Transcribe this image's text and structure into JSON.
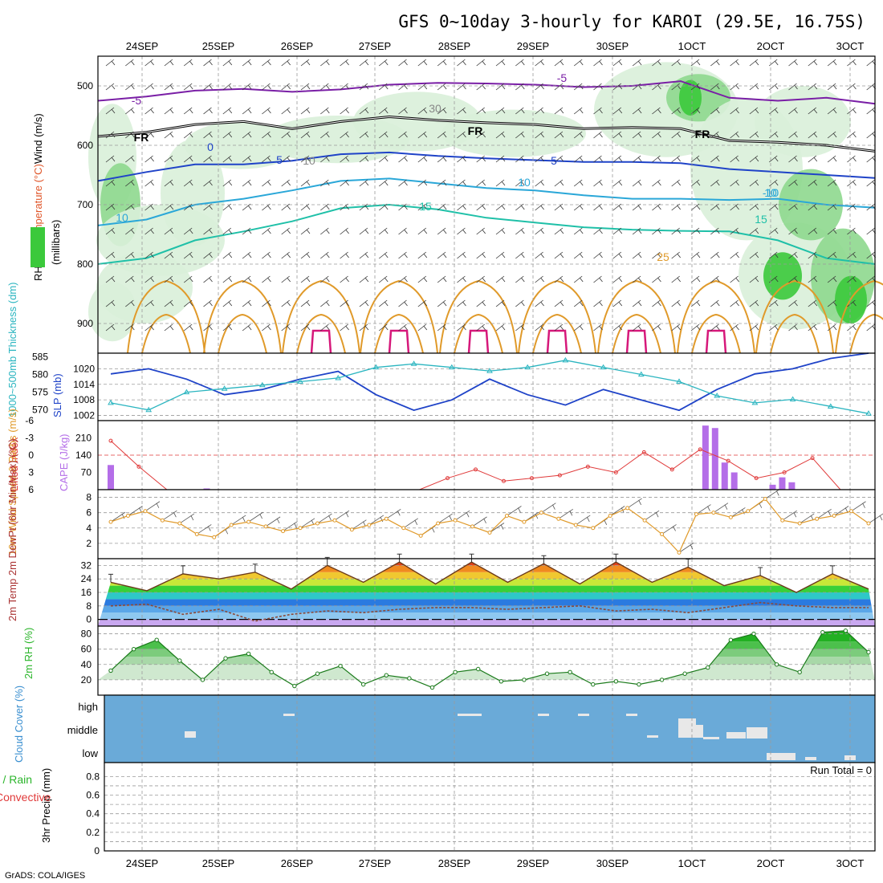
{
  "title": "GFS 0~10day 3-hourly for KAROI (29.5E, 16.75S)",
  "credit": "GrADS: COLA/IGES",
  "colors": {
    "temperature_cold": "#7a1fa6",
    "temperature_fr": "#000000",
    "temperature_mid": "#1f43c8",
    "temperature_cool": "#2aa7d8",
    "temperature_warm": "#1fc0a8",
    "temperature_hot": "#e09a2a",
    "temperature_hottest": "#d6187a",
    "rh_light": "#d9efd9",
    "rh_mid": "#8ed88e",
    "rh_high": "#3bc93b",
    "thickness": "#2bb5c0",
    "slp": "#1f43c8",
    "lifted_index": "#e03a3a",
    "cape": "#b46ee8",
    "wind": "#e09a2a",
    "rh2m": "#2bb52b",
    "cloud_bg": "#6aaad8",
    "cloud_block": "#e8e8e8"
  },
  "chart_data": [
    {
      "id": "upper_air",
      "type": "contour",
      "ylabel_parts": [
        "RH (%)",
        "Temperature (°C)",
        "Wind (m/s)"
      ],
      "ylabel_axis": "(millibars)",
      "yticks": [
        "500",
        "600",
        "700",
        "800",
        "900"
      ],
      "ylim": [
        450,
        950
      ],
      "x_labels_top": [
        "24SEP",
        "25SEP",
        "26SEP",
        "27SEP",
        "28SEP",
        "29SEP",
        "30SEP",
        "1OCT",
        "2OCT",
        "3OCT"
      ],
      "contour_labels": [
        "-5",
        "-5",
        "FR",
        "FR",
        "FR",
        "0",
        "5",
        "5",
        "10",
        "10",
        "-10",
        "15",
        "15",
        "25",
        "30",
        "10",
        "10"
      ],
      "series": [
        {
          "label": "-5",
          "x": [
            0,
            5,
            10,
            15,
            20,
            25,
            30,
            35,
            40,
            45,
            50,
            55,
            60,
            65,
            70,
            75,
            80
          ],
          "y": [
            525,
            518,
            508,
            505,
            510,
            506,
            498,
            495,
            496,
            498,
            502,
            500,
            492,
            520,
            525,
            520,
            530
          ]
        },
        {
          "label": "FR",
          "x": [
            0,
            5,
            10,
            15,
            20,
            25,
            30,
            35,
            40,
            45,
            50,
            55,
            60,
            65,
            70,
            75,
            80
          ],
          "y": [
            585,
            578,
            565,
            560,
            572,
            560,
            552,
            558,
            562,
            565,
            572,
            570,
            572,
            592,
            595,
            600,
            610
          ]
        },
        {
          "label": "5",
          "x": [
            0,
            5,
            10,
            15,
            20,
            25,
            30,
            35,
            40,
            45,
            50,
            55,
            60,
            65,
            70,
            75,
            80
          ],
          "y": [
            660,
            645,
            632,
            632,
            626,
            615,
            612,
            618,
            622,
            625,
            628,
            628,
            630,
            640,
            645,
            650,
            655
          ]
        },
        {
          "label": "10",
          "x": [
            0,
            5,
            10,
            15,
            20,
            25,
            30,
            35,
            40,
            45,
            50,
            55,
            60,
            65,
            70,
            75,
            80
          ],
          "y": [
            735,
            725,
            700,
            690,
            676,
            660,
            656,
            664,
            672,
            676,
            684,
            690,
            690,
            692,
            690,
            700,
            705
          ]
        },
        {
          "label": "15",
          "x": [
            0,
            5,
            10,
            15,
            20,
            25,
            30,
            35,
            40,
            45,
            50,
            55,
            60,
            65,
            70,
            75,
            80
          ],
          "y": [
            800,
            790,
            760,
            745,
            728,
            706,
            700,
            708,
            722,
            730,
            738,
            742,
            744,
            745,
            760,
            790,
            800
          ]
        }
      ]
    },
    {
      "id": "slp_thickness",
      "type": "line",
      "ylabel_left": "1000~500mb Thickness (dm)",
      "ylabel_right": "SLP (mb)",
      "yticks_left": [
        "570",
        "575",
        "580",
        "585"
      ],
      "yticks_right": [
        "1002",
        "1008",
        "1014",
        "1020"
      ],
      "series": [
        {
          "name": "SLP",
          "values": [
            1018,
            1020,
            1016,
            1010,
            1012,
            1016,
            1019,
            1010,
            1004,
            1008,
            1016,
            1010,
            1006,
            1012,
            1008,
            1004,
            1012,
            1018,
            1020,
            1024,
            1026
          ]
        },
        {
          "name": "Thickness",
          "values": [
            572,
            570,
            575,
            576,
            577,
            578,
            579,
            582,
            583,
            582,
            581,
            582,
            584,
            582,
            580,
            578,
            574,
            572,
            573,
            571,
            569
          ]
        }
      ]
    },
    {
      "id": "cape_li",
      "type": "bar",
      "ylabel_left": "CAPE (J/kg)",
      "ylabel_right": "Lifted Index",
      "yticks_left": [
        "70",
        "140",
        "210"
      ],
      "yticks_right": [
        "-6",
        "-3",
        "0",
        "3",
        "6"
      ],
      "cape": [
        {
          "t": 0,
          "v": 100
        },
        {
          "t": 10,
          "v": 5
        },
        {
          "t": 62,
          "v": 260
        },
        {
          "t": 63,
          "v": 250
        },
        {
          "t": 64,
          "v": 110
        },
        {
          "t": 65,
          "v": 70
        },
        {
          "t": 69,
          "v": 20
        },
        {
          "t": 70,
          "v": 50
        },
        {
          "t": 71,
          "v": 30
        }
      ],
      "lifted_index": [
        -2.5,
        2.0,
        6.5,
        6.5,
        6.5,
        6.5,
        6.5,
        6.5,
        6.5,
        6.5,
        6.5,
        6.5,
        4.0,
        2.5,
        4.5,
        4.0,
        3.5,
        2.0,
        3.0,
        -0.5,
        2.5,
        -1.0,
        1.0,
        4.0,
        3.0,
        0.5,
        6.0,
        6.0
      ]
    },
    {
      "id": "wind10m",
      "type": "line",
      "ylabel": "10m Wind Speed & Barbs (m/s)",
      "yticks": [
        "2",
        "4",
        "6",
        "8"
      ],
      "values": [
        4.8,
        5.6,
        6.2,
        5.0,
        4.6,
        3.2,
        2.8,
        4.4,
        4.8,
        4.2,
        3.6,
        4.0,
        4.6,
        5.0,
        3.8,
        4.4,
        5.2,
        4.0,
        3.0,
        4.6,
        5.0,
        4.2,
        3.4,
        5.6,
        4.8,
        6.0,
        5.2,
        4.4,
        4.0,
        5.6,
        6.6,
        5.0,
        3.2,
        0.8,
        5.8,
        6.0,
        5.4,
        6.2,
        7.8,
        5.0,
        4.6,
        5.2,
        5.6,
        6.2,
        4.6
      ]
    },
    {
      "id": "temp2m",
      "type": "area",
      "ylabel": "2m Temp 2m DewPt (6hr Min/Max) (°C)",
      "yticks": [
        "0",
        "8",
        "16",
        "24",
        "32"
      ],
      "temp": [
        22,
        17,
        27,
        24,
        28,
        18,
        32,
        22,
        34,
        21,
        34,
        22,
        33,
        21,
        34,
        22,
        31,
        20,
        26,
        16,
        27,
        18
      ],
      "dewpt": [
        8,
        9,
        3,
        6,
        -1,
        3,
        5,
        4,
        6,
        7,
        7,
        6,
        7,
        8,
        5,
        6,
        4,
        7,
        10,
        8,
        7,
        7
      ]
    },
    {
      "id": "rh2m",
      "type": "area",
      "ylabel": "2m RH (%)",
      "yticks": [
        "20",
        "40",
        "60",
        "80"
      ],
      "values": [
        32,
        60,
        72,
        45,
        20,
        48,
        54,
        30,
        12,
        28,
        38,
        14,
        26,
        22,
        10,
        30,
        34,
        18,
        20,
        28,
        30,
        14,
        18,
        14,
        20,
        28,
        36,
        72,
        80,
        40,
        30,
        82,
        84,
        56
      ]
    },
    {
      "id": "cloud",
      "type": "heatmap",
      "ylabel": "Cloud Cover (%)",
      "levels": [
        "high",
        "middle",
        "low"
      ]
    },
    {
      "id": "precip",
      "type": "bar",
      "ylabel": "3hr Precip (mm)",
      "legend": [
        "Total / Rain",
        "Convective"
      ],
      "run_total": "Run Total = 0",
      "yticks": [
        "0",
        "0.2",
        "0.4",
        "0.6",
        "0.8"
      ],
      "x_labels_bottom": [
        "24SEP",
        "25SEP",
        "26SEP",
        "27SEP",
        "28SEP",
        "29SEP",
        "30SEP",
        "1OCT",
        "2OCT",
        "3OCT"
      ],
      "values": []
    }
  ]
}
